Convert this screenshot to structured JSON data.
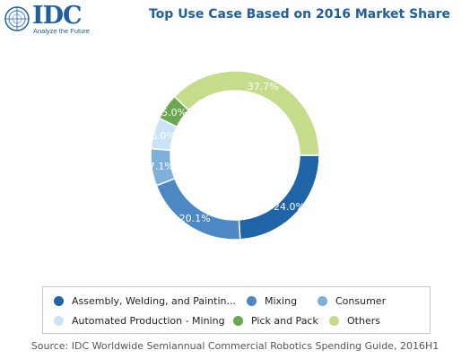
{
  "logo": {
    "text": "IDC",
    "tagline": "Analyze the Future"
  },
  "chart_data": {
    "type": "pie",
    "title": "Top Use Case Based on 2016 Market Share",
    "categories": [
      "Assembly, Welding, and Paintin...",
      "Mixing",
      "Consumer",
      "Automated Production - Mining",
      "Pick and Pack",
      "Others"
    ],
    "values": [
      24.0,
      20.1,
      7.1,
      6.0,
      5.0,
      37.7
    ],
    "data_labels": [
      "24.0%",
      "20.1%",
      "7.1%",
      "6.0%",
      "5.0%",
      "37.7%"
    ],
    "colors": [
      "#1e64a6",
      "#4c89c4",
      "#7db1db",
      "#c9e4f8",
      "#6aa84f",
      "#c5dd8a"
    ],
    "label_colors": [
      "#ffffff",
      "#ffffff",
      "#ffffff",
      "#ffffff",
      "#ffffff",
      "#ffffff"
    ],
    "legend_position": "bottom",
    "donut": true
  },
  "source": "Source: IDC Worldwide Semiannual Commercial Robotics Spending Guide, 2016H1"
}
